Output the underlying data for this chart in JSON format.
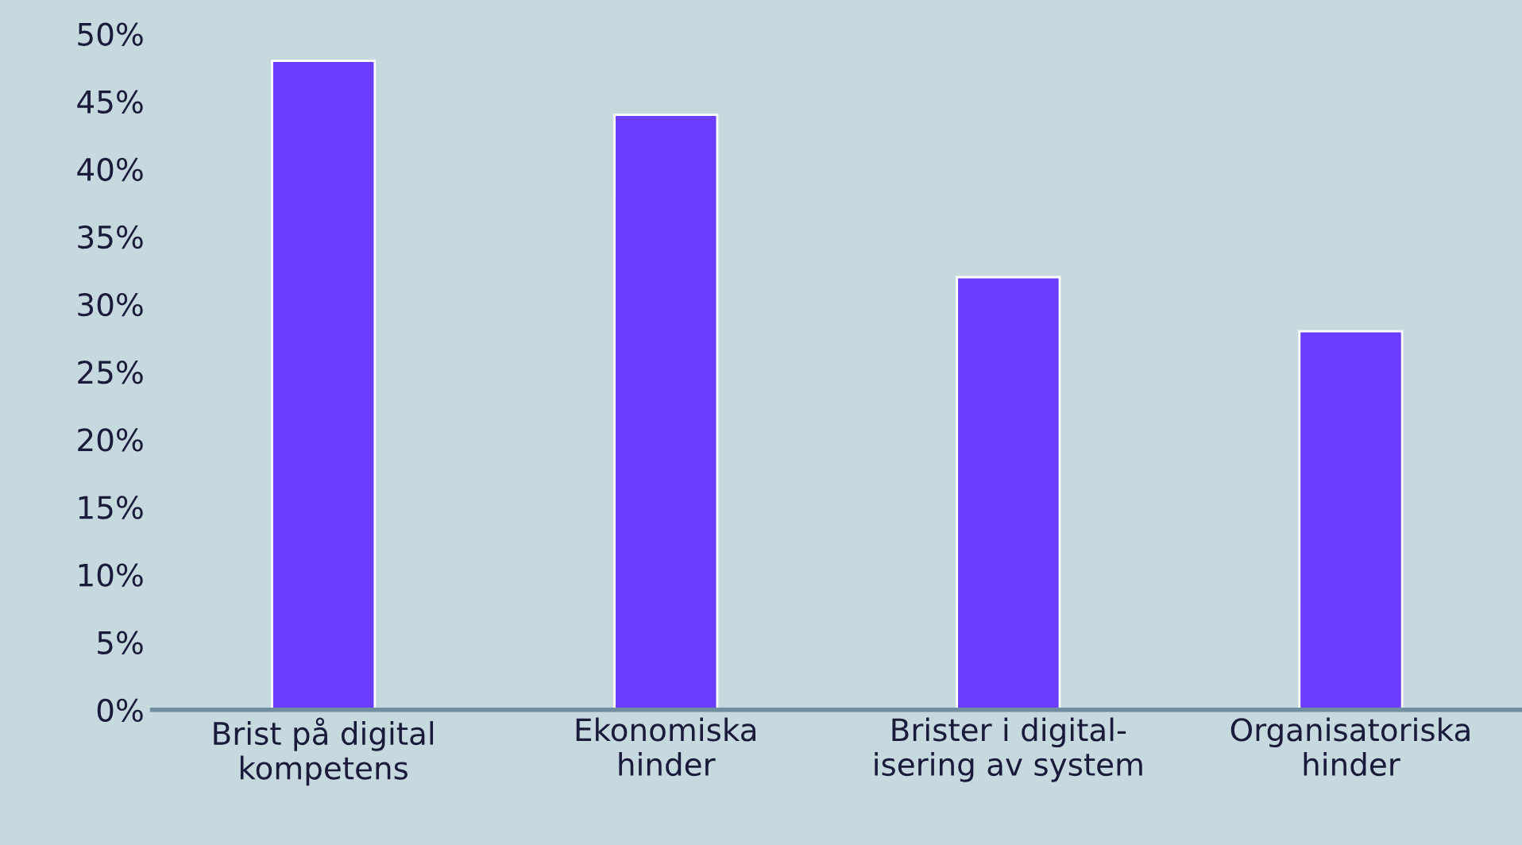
{
  "chart_data": {
    "type": "bar",
    "categories": [
      "Brist på digital\nkompetens",
      "Ekonomiska\nhinder",
      "Brister i digital-\nisering av system",
      "Organisatoriska\nhinder"
    ],
    "values": [
      48,
      44,
      32,
      28
    ],
    "color": "#6a3dff",
    "ylim": [
      0,
      50
    ],
    "yticks": [
      {
        "value": 0,
        "label": "0%"
      },
      {
        "value": 5,
        "label": "5%"
      },
      {
        "value": 10,
        "label": "10%"
      },
      {
        "value": 15,
        "label": "15%"
      },
      {
        "value": 20,
        "label": "20%"
      },
      {
        "value": 25,
        "label": "25%"
      },
      {
        "value": 30,
        "label": "30%"
      },
      {
        "value": 35,
        "label": "35%"
      },
      {
        "value": 40,
        "label": "40%"
      },
      {
        "value": 45,
        "label": "45%"
      },
      {
        "value": 50,
        "label": "50%"
      }
    ],
    "grid": false,
    "legend": false
  }
}
